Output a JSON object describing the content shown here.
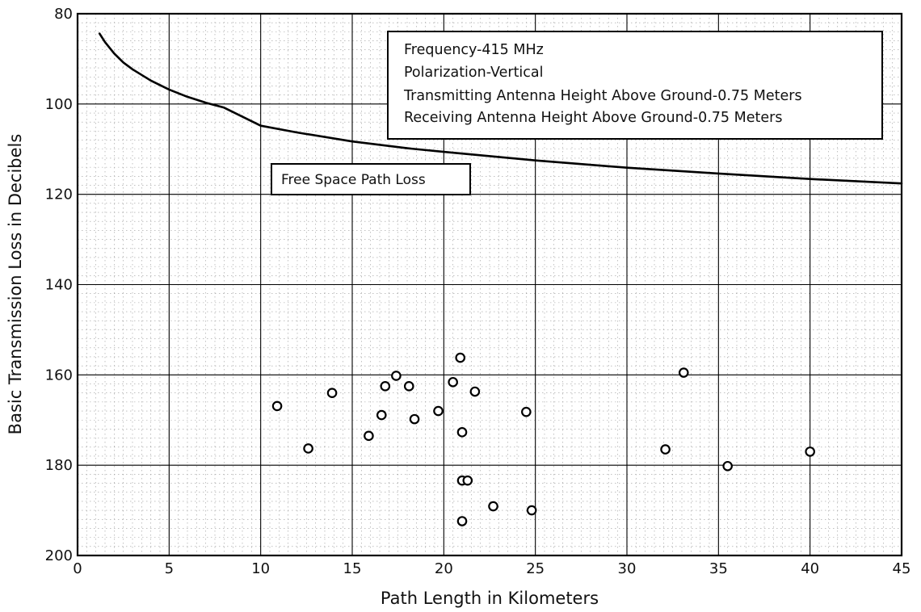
{
  "chart_data": {
    "type": "scatter",
    "xlabel": "Path Length in Kilometers",
    "ylabel": "Basic Transmission Loss in Decibels",
    "xlim": [
      0,
      45
    ],
    "ylim": [
      80,
      200
    ],
    "y_inverted": true,
    "x_ticks": [
      0,
      5,
      10,
      15,
      20,
      25,
      30,
      35,
      40,
      45
    ],
    "x_tick_labels": [
      "0",
      "5",
      "10",
      "15",
      "20",
      "25",
      "30",
      "35",
      "40",
      "45"
    ],
    "y_ticks": [
      80,
      100,
      120,
      140,
      160,
      180,
      200
    ],
    "y_tick_labels": [
      "80",
      "100",
      "120",
      "140",
      "160",
      "180",
      "200"
    ],
    "grid": true,
    "legend_box": {
      "placement": "top-right",
      "lines": [
        "Frequency-415 MHz",
        "Polarization-Vertical",
        "Transmitting Antenna Height Above Ground-0.75 Meters",
        "Receiving Antenna Height Above Ground-0.75 Meters"
      ]
    },
    "series": [
      {
        "name": "Free Space Path Loss",
        "kind": "line",
        "x": [
          1.2,
          1.5,
          2,
          2.5,
          3,
          4,
          5,
          6,
          7,
          8,
          10,
          12,
          15,
          18,
          20,
          25,
          30,
          35,
          40,
          45
        ],
        "values": [
          84.4,
          86.3,
          88.8,
          90.8,
          92.3,
          94.8,
          96.8,
          98.4,
          99.7,
          100.8,
          104.8,
          106.3,
          108.3,
          109.8,
          110.6,
          112.5,
          114.1,
          115.4,
          116.6,
          117.6
        ]
      },
      {
        "kind": "scatter",
        "marker": "open-circle",
        "x": [
          10.9,
          12.6,
          13.9,
          15.9,
          16.6,
          16.8,
          17.4,
          18.1,
          18.4,
          19.7,
          20.5,
          20.9,
          21.0,
          21.0,
          21.0,
          21.3,
          21.7,
          22.7,
          24.5,
          24.8,
          32.1,
          33.1,
          35.5,
          40.0
        ],
        "values": [
          166.9,
          176.3,
          164.0,
          173.5,
          168.9,
          162.5,
          160.2,
          162.5,
          169.8,
          168.0,
          161.6,
          156.2,
          172.7,
          192.4,
          183.4,
          183.4,
          163.7,
          189.1,
          168.2,
          190.0,
          176.5,
          159.5,
          180.2,
          177.0
        ]
      }
    ]
  }
}
